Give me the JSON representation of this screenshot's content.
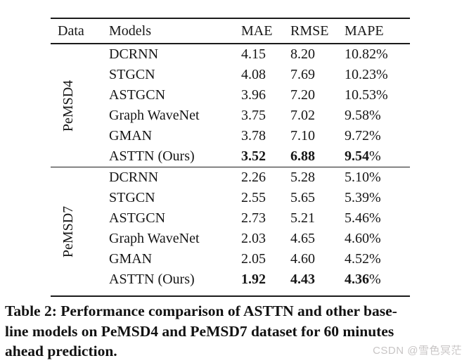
{
  "table": {
    "headers": [
      "Data",
      "Models",
      "MAE",
      "RMSE",
      "MAPE"
    ],
    "sections": [
      {
        "dataset": "PeMSD4",
        "rows": [
          {
            "model": "DCRNN",
            "mae": "4.15",
            "rmse": "8.20",
            "mape": "10.82",
            "pct": "%",
            "bold": false
          },
          {
            "model": "STGCN",
            "mae": "4.08",
            "rmse": "7.69",
            "mape": "10.23",
            "pct": "%",
            "bold": false
          },
          {
            "model": "ASTGCN",
            "mae": "3.96",
            "rmse": "7.20",
            "mape": "10.53",
            "pct": "%",
            "bold": false
          },
          {
            "model": "Graph WaveNet",
            "mae": "3.75",
            "rmse": "7.02",
            "mape": "9.58",
            "pct": "%",
            "bold": false
          },
          {
            "model": "GMAN",
            "mae": "3.78",
            "rmse": "7.10",
            "mape": "9.72",
            "pct": "%",
            "bold": false
          },
          {
            "model": "ASTTN (Ours)",
            "mae": "3.52",
            "rmse": "6.88",
            "mape": "9.54",
            "pct": "%",
            "bold": true
          }
        ]
      },
      {
        "dataset": "PeMSD7",
        "rows": [
          {
            "model": "DCRNN",
            "mae": "2.26",
            "rmse": "5.28",
            "mape": "5.10",
            "pct": "%",
            "bold": false
          },
          {
            "model": "STGCN",
            "mae": "2.55",
            "rmse": "5.65",
            "mape": "5.39",
            "pct": "%",
            "bold": false
          },
          {
            "model": "ASTGCN",
            "mae": "2.73",
            "rmse": "5.21",
            "mape": "5.46",
            "pct": "%",
            "bold": false
          },
          {
            "model": "Graph WaveNet",
            "mae": "2.03",
            "rmse": "4.65",
            "mape": "4.60",
            "pct": "%",
            "bold": false
          },
          {
            "model": "GMAN",
            "mae": "2.05",
            "rmse": "4.60",
            "mape": "4.52",
            "pct": "%",
            "bold": false
          },
          {
            "model": "ASTTN (Ours)",
            "mae": "1.92",
            "rmse": "4.43",
            "mape": "4.36",
            "pct": "%",
            "bold": true
          }
        ]
      }
    ]
  },
  "caption": {
    "lines": [
      "Table 2: Performance comparison of ASTTN and other base-",
      "line models on PeMSD4 and PeMSD7 dataset for 60 minutes",
      "ahead prediction."
    ]
  },
  "watermark": {
    "text": "CSDN @雪色冥茫"
  },
  "colors": {
    "text": "#161616",
    "rule": "#1b1b1b",
    "caption_text": "#111111",
    "watermark": "#c8c5c5",
    "background": "#ffffff"
  }
}
